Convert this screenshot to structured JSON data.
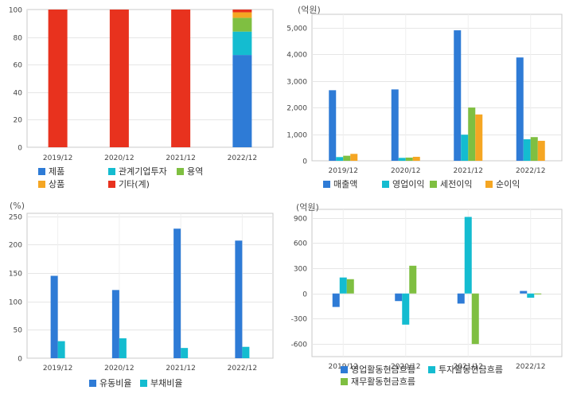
{
  "chart_data": [
    {
      "type": "bar",
      "stacked": true,
      "categories": [
        "2019/12",
        "2020/12",
        "2021/12",
        "2022/12"
      ],
      "ylim": [
        0,
        100
      ],
      "yticks": [
        0,
        20,
        40,
        60,
        80,
        100
      ],
      "unit": "",
      "series": [
        {
          "name": "제품",
          "color": "#2e7bd6",
          "values": [
            0,
            0,
            0,
            67
          ]
        },
        {
          "name": "관계기업투자",
          "color": "#14bcd0",
          "values": [
            0,
            0,
            0,
            17
          ]
        },
        {
          "name": "용역",
          "color": "#7fbf41",
          "values": [
            0,
            0,
            0,
            10
          ]
        },
        {
          "name": "상품",
          "color": "#f5a623",
          "values": [
            0,
            0,
            0,
            4
          ]
        },
        {
          "name": "기타(계)",
          "color": "#e8321e",
          "values": [
            100,
            100,
            100,
            2
          ]
        }
      ],
      "legend_rows": [
        [
          "제품",
          "관계기업투자",
          "용역"
        ],
        [
          "상품",
          "기타(계)"
        ]
      ]
    },
    {
      "type": "bar",
      "categories": [
        "2019/12",
        "2020/12",
        "2021/12",
        "2022/12"
      ],
      "ylim": [
        0,
        5500
      ],
      "yticks": [
        0,
        1000,
        2000,
        3000,
        4000,
        5000
      ],
      "ytick_labels": [
        "0",
        "1,000",
        "2,000",
        "3,000",
        "4,000",
        "5,000"
      ],
      "unit": "(억원)",
      "series": [
        {
          "name": "매출액",
          "color": "#2e7bd6",
          "values": [
            2650,
            2680,
            4900,
            3880
          ]
        },
        {
          "name": "영업이익",
          "color": "#14bcd0",
          "values": [
            140,
            110,
            980,
            810
          ]
        },
        {
          "name": "세전이익",
          "color": "#7fbf41",
          "values": [
            190,
            120,
            2000,
            890
          ]
        },
        {
          "name": "순이익",
          "color": "#f5a623",
          "values": [
            260,
            150,
            1740,
            750
          ]
        }
      ],
      "legend_rows": [
        [
          "매출액",
          "영업이익",
          "세전이익",
          "순이익"
        ]
      ]
    },
    {
      "type": "bar",
      "categories": [
        "2019/12",
        "2020/12",
        "2021/12",
        "2022/12"
      ],
      "ylim": [
        0,
        255
      ],
      "yticks": [
        0,
        50,
        100,
        150,
        200,
        250
      ],
      "unit": "(%)",
      "series": [
        {
          "name": "유동비율",
          "color": "#2e7bd6",
          "values": [
            145,
            120,
            228,
            207
          ]
        },
        {
          "name": "부채비율",
          "color": "#14bcd0",
          "values": [
            30,
            35,
            18,
            20
          ]
        }
      ],
      "legend_rows": [
        [
          "유동비율",
          "부채비율"
        ]
      ]
    },
    {
      "type": "bar",
      "categories": [
        "2019/12",
        "2020/12",
        "2021/12",
        "2022/12"
      ],
      "ylim": [
        -750,
        1000
      ],
      "yticks": [
        -600,
        -300,
        0,
        300,
        600,
        900
      ],
      "unit": "(억원)",
      "series": [
        {
          "name": "영업활동현금흐름",
          "color": "#2e7bd6",
          "values": [
            -160,
            -90,
            -120,
            30
          ]
        },
        {
          "name": "투자활동현금흐름",
          "color": "#14bcd0",
          "values": [
            190,
            -370,
            910,
            -50
          ]
        },
        {
          "name": "재무활동현금흐름",
          "color": "#7fbf41",
          "values": [
            170,
            330,
            -600,
            -10
          ]
        }
      ],
      "legend_rows": [
        [
          "영업활동현금흐름",
          "투자활동현금흐름"
        ],
        [
          "재무활동현금흐름"
        ]
      ]
    }
  ]
}
